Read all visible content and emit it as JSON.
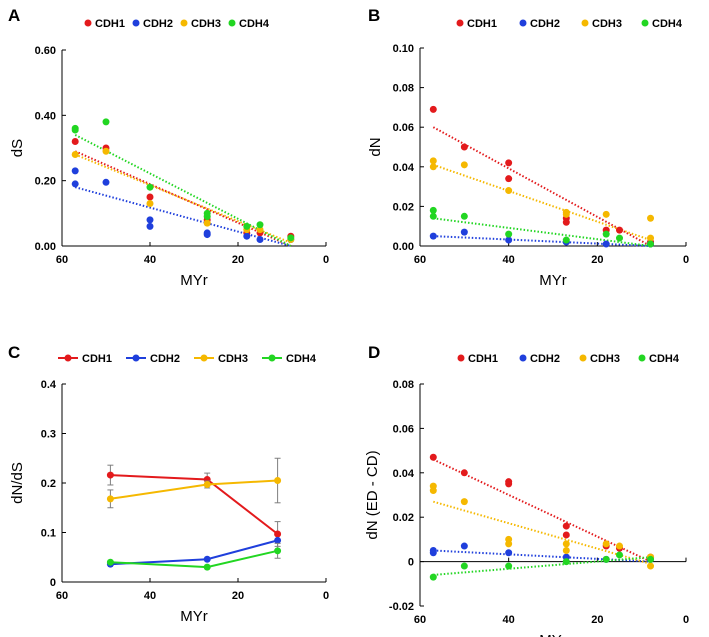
{
  "colors": {
    "CDH1": "#e31a1c",
    "CDH2": "#1f3fdc",
    "CDH3": "#f5b800",
    "CDH4": "#22d622",
    "error": "#7f7f7f",
    "axis": "#000000"
  },
  "chart_data": [
    {
      "panel": "A",
      "type": "scatter",
      "xlabel": "MYr",
      "ylabel": "dS",
      "xlim": [
        60,
        0
      ],
      "ylim": [
        0,
        0.6
      ],
      "xticks": [
        "60",
        "40",
        "20",
        "0"
      ],
      "yticks": [
        "0.00",
        "0.20",
        "0.40",
        "0.60"
      ],
      "legend": [
        "CDH1",
        "CDH2",
        "CDH3",
        "CDH4"
      ],
      "series": [
        {
          "name": "CDH1",
          "x": [
            57,
            50,
            40,
            27,
            18,
            15,
            8
          ],
          "y": [
            0.32,
            0.3,
            0.15,
            0.08,
            0.04,
            0.04,
            0.03
          ],
          "trend": [
            [
              57,
              0.29
            ],
            [
              8,
              0.0
            ]
          ]
        },
        {
          "name": "CDH2",
          "x": [
            57,
            57,
            50,
            40,
            40,
            27,
            27,
            18,
            15,
            8
          ],
          "y": [
            0.23,
            0.19,
            0.195,
            0.08,
            0.06,
            0.04,
            0.035,
            0.03,
            0.02,
            0.02
          ],
          "trend": [
            [
              57,
              0.18
            ],
            [
              8,
              0.0
            ]
          ]
        },
        {
          "name": "CDH3",
          "x": [
            57,
            50,
            40,
            27,
            18,
            15,
            8
          ],
          "y": [
            0.28,
            0.29,
            0.13,
            0.07,
            0.05,
            0.05,
            0.02
          ],
          "trend": [
            [
              57,
              0.28
            ],
            [
              8,
              0.01
            ]
          ]
        },
        {
          "name": "CDH4",
          "x": [
            57,
            57,
            50,
            40,
            27,
            27,
            18,
            15,
            8
          ],
          "y": [
            0.36,
            0.355,
            0.38,
            0.18,
            0.1,
            0.09,
            0.06,
            0.065,
            0.025
          ],
          "trend": [
            [
              57,
              0.34
            ],
            [
              8,
              0.0
            ]
          ]
        }
      ]
    },
    {
      "panel": "B",
      "type": "scatter",
      "xlabel": "MYr",
      "ylabel": "dN",
      "xlim": [
        60,
        0
      ],
      "ylim": [
        0,
        0.1
      ],
      "xticks": [
        "60",
        "40",
        "20",
        "0"
      ],
      "yticks": [
        "0.00",
        "0.02",
        "0.04",
        "0.06",
        "0.08",
        "0.10"
      ],
      "legend": [
        "CDH1",
        "CDH2",
        "CDH3",
        "CDH4"
      ],
      "series": [
        {
          "name": "CDH1",
          "x": [
            57,
            50,
            40,
            40,
            27,
            27,
            18,
            15,
            8
          ],
          "y": [
            0.069,
            0.05,
            0.042,
            0.034,
            0.014,
            0.012,
            0.008,
            0.008,
            0.002
          ],
          "trend": [
            [
              57,
              0.06
            ],
            [
              8,
              0.0
            ]
          ]
        },
        {
          "name": "CDH2",
          "x": [
            57,
            50,
            40,
            27,
            18,
            8
          ],
          "y": [
            0.005,
            0.007,
            0.003,
            0.002,
            0.001,
            0.001
          ],
          "trend": [
            [
              57,
              0.005
            ],
            [
              8,
              0.0
            ]
          ]
        },
        {
          "name": "CDH3",
          "x": [
            57,
            57,
            50,
            40,
            27,
            27,
            18,
            8,
            8
          ],
          "y": [
            0.043,
            0.04,
            0.041,
            0.028,
            0.017,
            0.016,
            0.016,
            0.014,
            0.004
          ],
          "trend": [
            [
              57,
              0.041
            ],
            [
              8,
              0.003
            ]
          ]
        },
        {
          "name": "CDH4",
          "x": [
            57,
            57,
            50,
            40,
            27,
            18,
            15,
            8
          ],
          "y": [
            0.018,
            0.015,
            0.015,
            0.006,
            0.003,
            0.006,
            0.004,
            0.001
          ],
          "trend": [
            [
              57,
              0.014
            ],
            [
              8,
              0.0
            ]
          ]
        }
      ]
    },
    {
      "panel": "C",
      "type": "line",
      "xlabel": "MYr",
      "ylabel": "dN/dS",
      "xlim": [
        60,
        0
      ],
      "ylim": [
        0,
        0.4
      ],
      "xticks": [
        "60",
        "40",
        "20",
        "0"
      ],
      "yticks": [
        "0",
        "0.1",
        "0.2",
        "0.3",
        "0.4"
      ],
      "legend": [
        "CDH1",
        "CDH2",
        "CDH3",
        "CDH4"
      ],
      "x": [
        49,
        27,
        11
      ],
      "series": [
        {
          "name": "CDH1",
          "values": [
            0.216,
            0.207,
            0.097
          ],
          "errors": [
            0.02,
            0.013,
            0.025
          ]
        },
        {
          "name": "CDH2",
          "values": [
            0.036,
            0.046,
            0.084
          ],
          "errors": [
            0,
            0,
            0
          ]
        },
        {
          "name": "CDH3",
          "values": [
            0.168,
            0.197,
            0.205
          ],
          "errors": [
            0.018,
            0.007,
            0.045
          ]
        },
        {
          "name": "CDH4",
          "values": [
            0.04,
            0.03,
            0.063
          ],
          "errors": [
            0,
            0,
            0.015
          ]
        }
      ]
    },
    {
      "panel": "D",
      "type": "scatter",
      "xlabel": "MYr",
      "ylabel": "dN (ED - CD)",
      "xlim": [
        60,
        0
      ],
      "ylim": [
        -0.02,
        0.08
      ],
      "xticks": [
        "60",
        "40",
        "20",
        "0"
      ],
      "yticks": [
        "-0.02",
        "0",
        "0.02",
        "0.04",
        "0.06",
        "0.08"
      ],
      "legend": [
        "CDH1",
        "CDH2",
        "CDH3",
        "CDH4"
      ],
      "series": [
        {
          "name": "CDH1",
          "x": [
            57,
            50,
            40,
            40,
            27,
            27,
            18,
            15,
            8
          ],
          "y": [
            0.047,
            0.04,
            0.036,
            0.035,
            0.016,
            0.012,
            0.007,
            0.006,
            0.002
          ],
          "trend": [
            [
              57,
              0.046
            ],
            [
              8,
              0.0
            ]
          ]
        },
        {
          "name": "CDH2",
          "x": [
            57,
            57,
            50,
            40,
            27,
            18,
            8
          ],
          "y": [
            0.005,
            0.004,
            0.007,
            0.004,
            0.002,
            0.001,
            0.001
          ],
          "trend": [
            [
              57,
              0.005
            ],
            [
              8,
              0.0
            ]
          ]
        },
        {
          "name": "CDH3",
          "x": [
            57,
            57,
            50,
            40,
            40,
            27,
            27,
            18,
            15,
            8,
            8
          ],
          "y": [
            0.034,
            0.032,
            0.027,
            0.01,
            0.008,
            0.008,
            0.005,
            0.008,
            0.007,
            0.002,
            -0.002
          ],
          "trend": [
            [
              57,
              0.027
            ],
            [
              8,
              -0.001
            ]
          ]
        },
        {
          "name": "CDH4",
          "x": [
            57,
            50,
            40,
            27,
            18,
            15,
            8
          ],
          "y": [
            -0.007,
            -0.002,
            -0.002,
            0.0,
            0.001,
            0.003,
            0.001
          ],
          "trend": [
            [
              57,
              -0.006
            ],
            [
              8,
              0.002
            ]
          ]
        }
      ]
    }
  ]
}
